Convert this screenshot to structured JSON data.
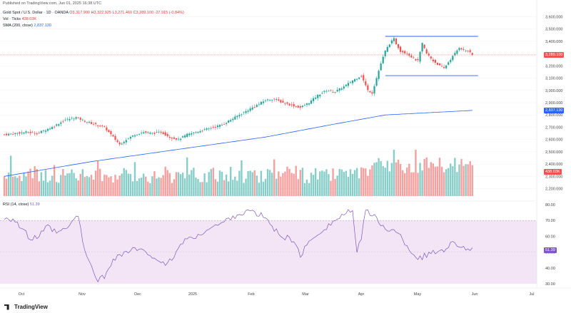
{
  "header": {
    "published": "Published on TradingView.com, Jun 01, 2025 16:38 UTC",
    "symbol": "Gold Spot / U.S. Dollar · 1D · OANDA",
    "o_label": "O",
    "o_value": "3,317.900",
    "h_label": "H",
    "h_value": "3,322.925",
    "l_label": "L",
    "l_value": "3,271.460",
    "c_label": "C",
    "c_value": "3,289.100",
    "change": "-27.915 (-0.84%)",
    "vol_label": "Vol · Ticks",
    "vol_value": "438.03K",
    "sma_label": "SMA (200, close)",
    "sma_value": "2,837.130",
    "rsi_label": "RSI (14, close)",
    "rsi_value": "51.39"
  },
  "tags": {
    "price": "3,289.100",
    "sma": "2,837.130",
    "volume": "438.03K",
    "rsi": "51.39"
  },
  "footer": {
    "logo_text": "TradingView"
  },
  "colors": {
    "up": "#26a69a",
    "down": "#ef5350",
    "sma": "#2962ff",
    "rsi": "#7e57c2",
    "rsi_band": "#f3e5f5",
    "rect_line": "#2962ff"
  },
  "chart_data": [
    {
      "type": "candlestick",
      "title": "Gold Spot / U.S. Dollar · 1D · OANDA",
      "yticks": [
        "3,600.000",
        "3,500.000",
        "3,400.000",
        "3,300.000",
        "3,200.000",
        "3,100.000",
        "3,000.000",
        "2,900.000",
        "2,800.000",
        "2,700.000",
        "2,600.000",
        "2,500.000",
        "2,400.000",
        "2,300.000",
        "2,200.000"
      ],
      "ylim": [
        2180,
        3620
      ],
      "xticks": [
        "Oct",
        "Nov",
        "Dec",
        "2025",
        "Feb",
        "Mar",
        "Apr",
        "May",
        "Jun",
        "Jul"
      ],
      "anchors": [
        [
          0,
          2640
        ],
        [
          10,
          2660
        ],
        [
          15,
          2650
        ],
        [
          22,
          2700
        ],
        [
          28,
          2760
        ],
        [
          33,
          2780
        ],
        [
          37,
          2750
        ],
        [
          42,
          2720
        ],
        [
          46,
          2700
        ],
        [
          50,
          2620
        ],
        [
          53,
          2560
        ],
        [
          56,
          2600
        ],
        [
          60,
          2640
        ],
        [
          64,
          2660
        ],
        [
          68,
          2650
        ],
        [
          72,
          2660
        ],
        [
          76,
          2620
        ],
        [
          80,
          2600
        ],
        [
          84,
          2640
        ],
        [
          88,
          2660
        ],
        [
          92,
          2680
        ],
        [
          96,
          2700
        ],
        [
          100,
          2720
        ],
        [
          104,
          2760
        ],
        [
          108,
          2800
        ],
        [
          112,
          2840
        ],
        [
          116,
          2880
        ],
        [
          120,
          2920
        ],
        [
          124,
          2930
        ],
        [
          128,
          2900
        ],
        [
          132,
          2880
        ],
        [
          136,
          2860
        ],
        [
          140,
          2900
        ],
        [
          144,
          2960
        ],
        [
          148,
          3000
        ],
        [
          152,
          2990
        ],
        [
          156,
          3030
        ],
        [
          160,
          3080
        ],
        [
          164,
          3120
        ],
        [
          167,
          3000
        ],
        [
          169,
          2980
        ],
        [
          171,
          3100
        ],
        [
          173,
          3220
        ],
        [
          175,
          3320
        ],
        [
          177,
          3380
        ],
        [
          179,
          3420
        ],
        [
          180,
          3380
        ],
        [
          182,
          3320
        ],
        [
          185,
          3300
        ],
        [
          188,
          3260
        ],
        [
          190,
          3240
        ],
        [
          192,
          3380
        ],
        [
          194,
          3300
        ],
        [
          197,
          3240
        ],
        [
          200,
          3200
        ],
        [
          202,
          3180
        ],
        [
          204,
          3230
        ],
        [
          207,
          3300
        ],
        [
          209,
          3350
        ],
        [
          211,
          3330
        ],
        [
          213,
          3320
        ],
        [
          215,
          3290
        ]
      ],
      "sma_200": [
        [
          0,
          2300
        ],
        [
          40,
          2420
        ],
        [
          80,
          2520
        ],
        [
          120,
          2620
        ],
        [
          150,
          2720
        ],
        [
          175,
          2800
        ],
        [
          215,
          2837
        ]
      ],
      "resistance": 3440,
      "support": 3120,
      "last_close": 3289.1
    },
    {
      "type": "bar",
      "title": "Vol · Ticks",
      "note": "volume histogram colored by candle direction"
    },
    {
      "type": "line",
      "title": "RSI (14, close)",
      "yticks": [
        "80.00",
        "70.00",
        "60.00",
        "50.00",
        "40.00",
        "30.00"
      ],
      "ylim": [
        30,
        80
      ],
      "band": [
        30,
        70
      ],
      "anchors": [
        [
          0,
          72
        ],
        [
          4,
          71
        ],
        [
          8,
          65
        ],
        [
          12,
          58
        ],
        [
          16,
          60
        ],
        [
          20,
          66
        ],
        [
          24,
          62
        ],
        [
          28,
          64
        ],
        [
          32,
          70
        ],
        [
          34,
          74
        ],
        [
          36,
          55
        ],
        [
          38,
          48
        ],
        [
          40,
          40
        ],
        [
          43,
          33
        ],
        [
          46,
          34
        ],
        [
          50,
          46
        ],
        [
          53,
          48
        ],
        [
          56,
          50
        ],
        [
          60,
          52
        ],
        [
          64,
          50
        ],
        [
          68,
          48
        ],
        [
          72,
          44
        ],
        [
          74,
          40
        ],
        [
          76,
          44
        ],
        [
          80,
          52
        ],
        [
          84,
          60
        ],
        [
          88,
          58
        ],
        [
          92,
          64
        ],
        [
          96,
          66
        ],
        [
          100,
          68
        ],
        [
          104,
          72
        ],
        [
          108,
          74
        ],
        [
          112,
          76
        ],
        [
          116,
          74
        ],
        [
          120,
          72
        ],
        [
          124,
          64
        ],
        [
          128,
          60
        ],
        [
          132,
          58
        ],
        [
          136,
          48
        ],
        [
          140,
          56
        ],
        [
          144,
          62
        ],
        [
          148,
          66
        ],
        [
          152,
          70
        ],
        [
          156,
          74
        ],
        [
          160,
          76
        ],
        [
          162,
          48
        ],
        [
          164,
          60
        ],
        [
          166,
          78
        ],
        [
          168,
          74
        ],
        [
          170,
          72
        ],
        [
          174,
          66
        ],
        [
          178,
          64
        ],
        [
          182,
          60
        ],
        [
          186,
          52
        ],
        [
          190,
          46
        ],
        [
          194,
          48
        ],
        [
          198,
          50
        ],
        [
          202,
          52
        ],
        [
          206,
          56
        ],
        [
          210,
          54
        ],
        [
          215,
          51
        ]
      ],
      "last_value": 51.39
    }
  ]
}
